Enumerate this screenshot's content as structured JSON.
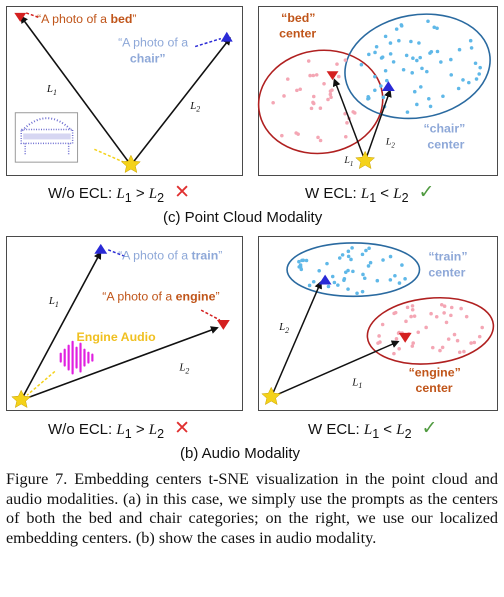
{
  "panel_pc_left": {
    "bed_prompt_prefix": "“A photo of a ",
    "bed_word": "bed",
    "bed_prompt_suffix": "”",
    "chair_prompt_line1": "“A photo of a",
    "chair_prompt_line2": "chair”",
    "l1": "L",
    "l1_sub": "1",
    "l2": "L",
    "l2_sub": "2"
  },
  "panel_pc_right": {
    "bed_center_line1": "“bed”",
    "bed_center_line2": "center",
    "chair_center_line1": "“chair”",
    "chair_center_line2": "center",
    "l1": "L",
    "l1_sub": "1",
    "l2": "L",
    "l2_sub": "2"
  },
  "caption_pc_left": {
    "prefix": "W/o ECL: ",
    "lhs": "L",
    "lhs_sub": "1",
    "op": " > ",
    "rhs": "L",
    "rhs_sub": "2"
  },
  "caption_pc_right": {
    "prefix": "W ECL: ",
    "lhs": "L",
    "lhs_sub": "1",
    "op": " < ",
    "rhs": "L",
    "rhs_sub": "2"
  },
  "subcaption_c": "(c)  Point Cloud Modality",
  "panel_audio_left": {
    "train_prompt_prefix": "“A photo of a ",
    "train_word": "train",
    "train_prompt_suffix": "”",
    "engine_prompt_prefix": "“A photo of a ",
    "engine_word": "engine",
    "engine_prompt_suffix": "”",
    "engine_audio_label": "Engine Audio",
    "l1": "L",
    "l1_sub": "1",
    "l2": "L",
    "l2_sub": "2"
  },
  "panel_audio_right": {
    "train_center_line1": "“train”",
    "train_center_line2": "center",
    "engine_center_line1": "“engine”",
    "engine_center_line2": "center",
    "l1": "L",
    "l1_sub": "1",
    "l2": "L",
    "l2_sub": "2"
  },
  "caption_audio_left": {
    "prefix": "W/o ECL: ",
    "lhs": "L",
    "lhs_sub": "1",
    "op": " > ",
    "rhs": "L",
    "rhs_sub": "2"
  },
  "caption_audio_right": {
    "prefix": "W ECL: ",
    "lhs": "L",
    "lhs_sub": "1",
    "op": " < ",
    "rhs": "L",
    "rhs_sub": "2"
  },
  "subcaption_b": "(b)  Audio Modality",
  "figure_caption": "Figure 7.  Embedding centers t-SNE visualization in the point cloud and audio modalities.  (a) in this case, we simply use the prompts as the centers of both the bed and chair categories; on the right, we use our localized embedding centers. (b) show the cases in audio modality.",
  "symbols": {
    "cross": "✕",
    "check": "✓"
  },
  "colors": {
    "red": "#d42020",
    "blue": "#2a2ad6",
    "star": "#f4d21a",
    "bed_text": "#c0551a",
    "chair_text": "#8ea8d8",
    "ellipse_red": "#b02020",
    "ellipse_blue": "#2a6aa0",
    "pink_dot": "#f4a6b4",
    "blue_dot": "#5fb8e8",
    "audio_wave": "#e020e0",
    "engine_audio_text": "#f0c020"
  }
}
